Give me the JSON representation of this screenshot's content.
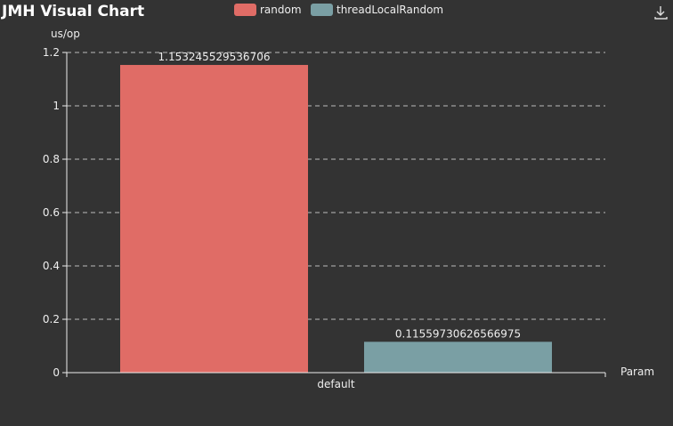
{
  "toolbox": {
    "download_icon": "download-icon"
  },
  "chart_data": {
    "type": "bar",
    "title": "JMH Visual Chart",
    "ylabel": "us/op",
    "xlabel": "Param",
    "categories": [
      "default"
    ],
    "ylim": [
      0,
      1.2
    ],
    "yticks": [
      0,
      0.2,
      0.4,
      0.6,
      0.8,
      1,
      1.2
    ],
    "ytick_labels": [
      "0",
      "0.2",
      "0.4",
      "0.6",
      "0.8",
      "1",
      "1.2"
    ],
    "grid": true,
    "legend_position": "top-center",
    "series": [
      {
        "name": "random",
        "values": [
          1.153245529536706
        ],
        "value_labels": [
          "1.153245529536706"
        ],
        "color": "#e06c66"
      },
      {
        "name": "threadLocalRandom",
        "values": [
          0.11559730626566975
        ],
        "value_labels": [
          "0.11559730626566975"
        ],
        "color": "#7a9fa4"
      }
    ]
  }
}
